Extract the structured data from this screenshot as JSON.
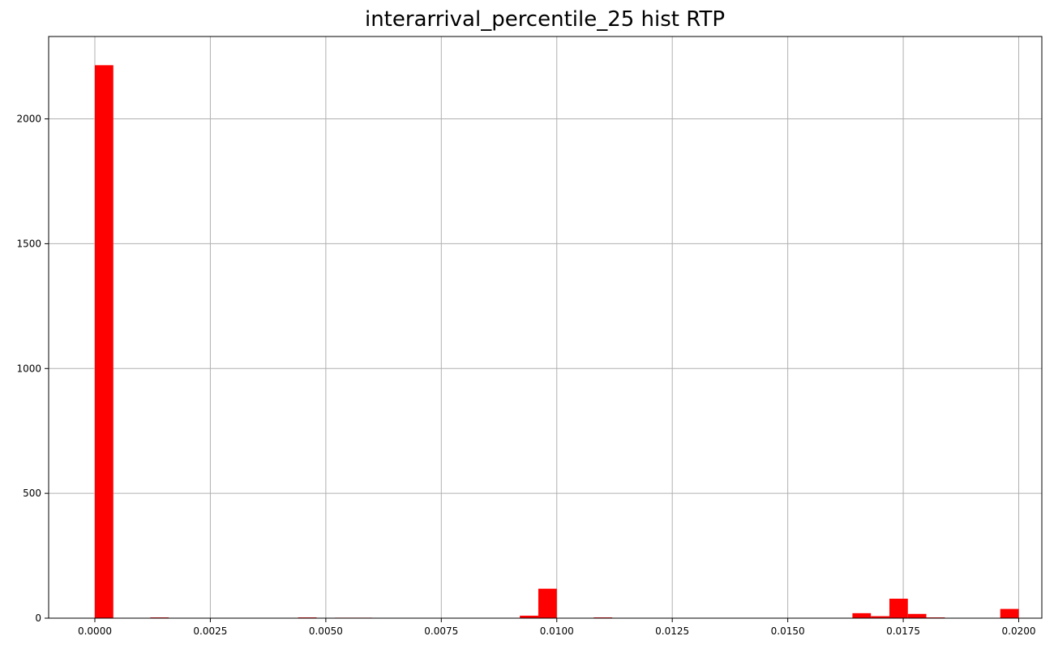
{
  "chart_data": {
    "type": "bar",
    "title": "interarrival_percentile_25 hist RTP",
    "xlabel": "",
    "ylabel": "",
    "xlim": [
      -0.001,
      0.0205
    ],
    "ylim": [
      0,
      2330
    ],
    "grid": true,
    "bar_color": "#ff0000",
    "bin_width": 0.0004,
    "x_ticks": [
      {
        "value": 0.0,
        "label": "0.0000"
      },
      {
        "value": 0.0025,
        "label": "0.0025"
      },
      {
        "value": 0.005,
        "label": "0.0050"
      },
      {
        "value": 0.0075,
        "label": "0.0075"
      },
      {
        "value": 0.01,
        "label": "0.0100"
      },
      {
        "value": 0.0125,
        "label": "0.0125"
      },
      {
        "value": 0.015,
        "label": "0.0150"
      },
      {
        "value": 0.0175,
        "label": "0.0175"
      },
      {
        "value": 0.02,
        "label": "0.0200"
      }
    ],
    "y_ticks": [
      {
        "value": 0,
        "label": "0"
      },
      {
        "value": 500,
        "label": "500"
      },
      {
        "value": 1000,
        "label": "1000"
      },
      {
        "value": 1500,
        "label": "1500"
      },
      {
        "value": 2000,
        "label": "2000"
      }
    ],
    "bins": [
      {
        "x": 0.0,
        "count": 2215
      },
      {
        "x": 0.0012,
        "count": 3
      },
      {
        "x": 0.0044,
        "count": 3
      },
      {
        "x": 0.0052,
        "count": 2
      },
      {
        "x": 0.0056,
        "count": 2
      },
      {
        "x": 0.0092,
        "count": 10
      },
      {
        "x": 0.0096,
        "count": 118
      },
      {
        "x": 0.0108,
        "count": 3
      },
      {
        "x": 0.0164,
        "count": 20
      },
      {
        "x": 0.0168,
        "count": 8
      },
      {
        "x": 0.0172,
        "count": 78
      },
      {
        "x": 0.0176,
        "count": 17
      },
      {
        "x": 0.018,
        "count": 3
      },
      {
        "x": 0.0196,
        "count": 37
      }
    ]
  }
}
